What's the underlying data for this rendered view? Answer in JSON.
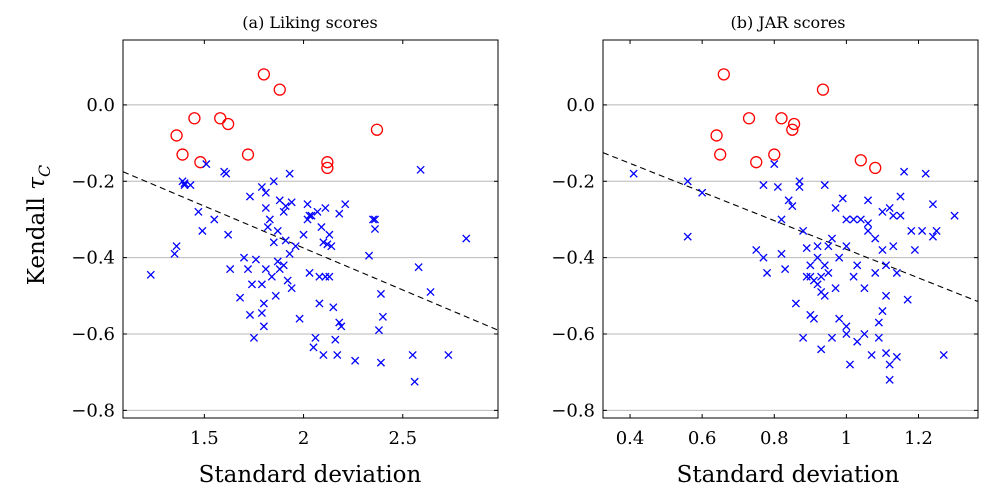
{
  "figure": {
    "ylabel_text": "Kendall ",
    "ylabel_symbol": "τ",
    "ylabel_subscript": "C"
  },
  "chart_data": [
    {
      "type": "scatter",
      "title": "(a) Liking scores",
      "xlabel": "Standard deviation",
      "ylabel": "Kendall τC",
      "xlim": [
        1.09,
        2.98
      ],
      "ylim": [
        -0.82,
        0.17
      ],
      "xticks": [
        1.5,
        2,
        2.5
      ],
      "xtick_labels": [
        "1.5",
        "2",
        "2.5"
      ],
      "yticks": [
        0.0,
        -0.2,
        -0.4,
        -0.6,
        -0.8
      ],
      "ytick_labels": [
        "0.0",
        "−0.2",
        "−0.4",
        "−0.6",
        "−0.8"
      ],
      "grid": "horizontal",
      "trend_line": {
        "x": [
          1.09,
          2.98
        ],
        "y": [
          -0.175,
          -0.59
        ]
      },
      "series": [
        {
          "marker": "circle",
          "color": "#ff0000",
          "points": [
            [
              1.36,
              -0.08
            ],
            [
              1.39,
              -0.13
            ],
            [
              1.45,
              -0.035
            ],
            [
              1.48,
              -0.15
            ],
            [
              1.58,
              -0.035
            ],
            [
              1.62,
              -0.05
            ],
            [
              1.72,
              -0.13
            ],
            [
              1.8,
              0.08
            ],
            [
              1.88,
              0.04
            ],
            [
              2.12,
              -0.15
            ],
            [
              2.12,
              -0.165
            ],
            [
              2.37,
              -0.065
            ]
          ]
        },
        {
          "marker": "cross",
          "color": "#0000ff",
          "points": [
            [
              1.23,
              -0.445
            ],
            [
              1.35,
              -0.39
            ],
            [
              1.36,
              -0.37
            ],
            [
              1.39,
              -0.2
            ],
            [
              1.4,
              -0.205
            ],
            [
              1.4,
              -0.21
            ],
            [
              1.43,
              -0.21
            ],
            [
              1.47,
              -0.28
            ],
            [
              1.49,
              -0.33
            ],
            [
              1.51,
              -0.155
            ],
            [
              1.55,
              -0.3
            ],
            [
              1.6,
              -0.175
            ],
            [
              1.61,
              -0.18
            ],
            [
              1.62,
              -0.34
            ],
            [
              1.63,
              -0.43
            ],
            [
              1.68,
              -0.505
            ],
            [
              1.7,
              -0.4
            ],
            [
              1.72,
              -0.43
            ],
            [
              1.73,
              -0.55
            ],
            [
              1.74,
              -0.47
            ],
            [
              1.73,
              -0.24
            ],
            [
              1.75,
              -0.61
            ],
            [
              1.76,
              -0.405
            ],
            [
              1.79,
              -0.215
            ],
            [
              1.79,
              -0.47
            ],
            [
              1.79,
              -0.545
            ],
            [
              1.8,
              -0.52
            ],
            [
              1.8,
              -0.58
            ],
            [
              1.81,
              -0.23
            ],
            [
              1.81,
              -0.43
            ],
            [
              1.82,
              -0.32
            ],
            [
              1.81,
              -0.27
            ],
            [
              1.83,
              -0.3
            ],
            [
              1.84,
              -0.45
            ],
            [
              1.85,
              -0.2
            ],
            [
              1.85,
              -0.36
            ],
            [
              1.86,
              -0.5
            ],
            [
              1.87,
              -0.33
            ],
            [
              1.87,
              -0.41
            ],
            [
              1.88,
              -0.25
            ],
            [
              1.88,
              -0.43
            ],
            [
              1.9,
              -0.28
            ],
            [
              1.9,
              -0.42
            ],
            [
              1.91,
              -0.265
            ],
            [
              1.91,
              -0.355
            ],
            [
              1.92,
              -0.46
            ],
            [
              1.93,
              -0.18
            ],
            [
              1.93,
              -0.39
            ],
            [
              1.94,
              -0.255
            ],
            [
              1.94,
              -0.48
            ],
            [
              1.96,
              -0.37
            ],
            [
              1.98,
              -0.56
            ],
            [
              2.0,
              -0.34
            ],
            [
              2.02,
              -0.3
            ],
            [
              2.02,
              -0.26
            ],
            [
              2.03,
              -0.44
            ],
            [
              2.03,
              -0.29
            ],
            [
              2.04,
              -0.29
            ],
            [
              2.05,
              -0.635
            ],
            [
              2.06,
              -0.61
            ],
            [
              2.07,
              -0.28
            ],
            [
              2.08,
              -0.45
            ],
            [
              2.08,
              -0.52
            ],
            [
              2.09,
              -0.32
            ],
            [
              2.1,
              -0.36
            ],
            [
              2.1,
              -0.655
            ],
            [
              2.11,
              -0.27
            ],
            [
              2.11,
              -0.45
            ],
            [
              2.12,
              -0.365
            ],
            [
              2.13,
              -0.34
            ],
            [
              2.13,
              -0.45
            ],
            [
              2.14,
              -0.37
            ],
            [
              2.15,
              -0.53
            ],
            [
              2.16,
              -0.615
            ],
            [
              2.17,
              -0.655
            ],
            [
              2.18,
              -0.57
            ],
            [
              2.18,
              -0.285
            ],
            [
              2.19,
              -0.58
            ],
            [
              2.21,
              -0.26
            ],
            [
              2.26,
              -0.67
            ],
            [
              2.33,
              -0.395
            ],
            [
              2.35,
              -0.3
            ],
            [
              2.36,
              -0.325
            ],
            [
              2.36,
              -0.3
            ],
            [
              2.38,
              -0.59
            ],
            [
              2.39,
              -0.675
            ],
            [
              2.39,
              -0.495
            ],
            [
              2.4,
              -0.555
            ],
            [
              2.55,
              -0.655
            ],
            [
              2.56,
              -0.725
            ],
            [
              2.58,
              -0.425
            ],
            [
              2.59,
              -0.17
            ],
            [
              2.64,
              -0.49
            ],
            [
              2.73,
              -0.655
            ],
            [
              2.82,
              -0.35
            ]
          ]
        }
      ]
    },
    {
      "type": "scatter",
      "title": "(b) JAR scores",
      "xlabel": "Standard deviation",
      "ylabel": "",
      "xlim": [
        0.325,
        1.365
      ],
      "ylim": [
        -0.82,
        0.17
      ],
      "xticks": [
        0.4,
        0.6,
        0.8,
        1.0,
        1.2
      ],
      "xtick_labels": [
        "0.4",
        "0.6",
        "0.8",
        "1",
        "1.2"
      ],
      "yticks": [
        0.0,
        -0.2,
        -0.4,
        -0.6,
        -0.8
      ],
      "ytick_labels": [
        "0.0",
        "−0.2",
        "−0.4",
        "−0.6",
        "−0.8"
      ],
      "grid": "horizontal",
      "trend_line": {
        "x": [
          0.325,
          1.365
        ],
        "y": [
          -0.125,
          -0.515
        ]
      },
      "series": [
        {
          "marker": "circle",
          "color": "#ff0000",
          "points": [
            [
              0.64,
              -0.08
            ],
            [
              0.65,
              -0.13
            ],
            [
              0.66,
              0.08
            ],
            [
              0.73,
              -0.035
            ],
            [
              0.75,
              -0.15
            ],
            [
              0.8,
              -0.13
            ],
            [
              0.82,
              -0.035
            ],
            [
              0.85,
              -0.065
            ],
            [
              0.855,
              -0.05
            ],
            [
              0.935,
              0.04
            ],
            [
              1.04,
              -0.145
            ],
            [
              1.08,
              -0.165
            ]
          ]
        },
        {
          "marker": "cross",
          "color": "#0000ff",
          "points": [
            [
              0.41,
              -0.18
            ],
            [
              0.56,
              -0.2
            ],
            [
              0.6,
              -0.23
            ],
            [
              0.56,
              -0.345
            ],
            [
              0.75,
              -0.38
            ],
            [
              0.77,
              -0.4
            ],
            [
              0.77,
              -0.21
            ],
            [
              0.78,
              -0.44
            ],
            [
              0.8,
              -0.155
            ],
            [
              0.81,
              -0.215
            ],
            [
              0.82,
              -0.3
            ],
            [
              0.82,
              -0.39
            ],
            [
              0.83,
              -0.43
            ],
            [
              0.84,
              -0.25
            ],
            [
              0.85,
              -0.265
            ],
            [
              0.86,
              -0.52
            ],
            [
              0.87,
              -0.2
            ],
            [
              0.87,
              -0.215
            ],
            [
              0.88,
              -0.33
            ],
            [
              0.88,
              -0.61
            ],
            [
              0.89,
              -0.375
            ],
            [
              0.89,
              -0.45
            ],
            [
              0.9,
              -0.42
            ],
            [
              0.9,
              -0.45
            ],
            [
              0.9,
              -0.55
            ],
            [
              0.91,
              -0.46
            ],
            [
              0.91,
              -0.56
            ],
            [
              0.92,
              -0.47
            ],
            [
              0.92,
              -0.4
            ],
            [
              0.92,
              -0.37
            ],
            [
              0.93,
              -0.45
            ],
            [
              0.93,
              -0.49
            ],
            [
              0.93,
              -0.64
            ],
            [
              0.94,
              -0.42
            ],
            [
              0.94,
              -0.5
            ],
            [
              0.94,
              -0.21
            ],
            [
              0.95,
              -0.37
            ],
            [
              0.95,
              -0.44
            ],
            [
              0.96,
              -0.35
            ],
            [
              0.96,
              -0.61
            ],
            [
              0.97,
              -0.48
            ],
            [
              0.97,
              -0.27
            ],
            [
              0.98,
              -0.4
            ],
            [
              0.98,
              -0.56
            ],
            [
              0.99,
              -0.245
            ],
            [
              1.0,
              -0.3
            ],
            [
              1.0,
              -0.37
            ],
            [
              1.0,
              -0.58
            ],
            [
              1.0,
              -0.6
            ],
            [
              1.01,
              -0.68
            ],
            [
              1.02,
              -0.45
            ],
            [
              1.02,
              -0.3
            ],
            [
              1.03,
              -0.42
            ],
            [
              1.03,
              -0.62
            ],
            [
              1.04,
              -0.3
            ],
            [
              1.05,
              -0.48
            ],
            [
              1.05,
              -0.6
            ],
            [
              1.06,
              -0.25
            ],
            [
              1.06,
              -0.31
            ],
            [
              1.06,
              -0.33
            ],
            [
              1.07,
              -0.655
            ],
            [
              1.08,
              -0.35
            ],
            [
              1.08,
              -0.44
            ],
            [
              1.09,
              -0.57
            ],
            [
              1.09,
              -0.61
            ],
            [
              1.1,
              -0.38
            ],
            [
              1.1,
              -0.28
            ],
            [
              1.1,
              -0.54
            ],
            [
              1.11,
              -0.42
            ],
            [
              1.11,
              -0.65
            ],
            [
              1.11,
              -0.5
            ],
            [
              1.12,
              -0.68
            ],
            [
              1.12,
              -0.72
            ],
            [
              1.12,
              -0.27
            ],
            [
              1.13,
              -0.37
            ],
            [
              1.13,
              -0.29
            ],
            [
              1.14,
              -0.44
            ],
            [
              1.14,
              -0.66
            ],
            [
              1.15,
              -0.24
            ],
            [
              1.15,
              -0.29
            ],
            [
              1.16,
              -0.175
            ],
            [
              1.17,
              -0.51
            ],
            [
              1.18,
              -0.33
            ],
            [
              1.19,
              -0.38
            ],
            [
              1.21,
              -0.33
            ],
            [
              1.22,
              -0.18
            ],
            [
              1.24,
              -0.26
            ],
            [
              1.24,
              -0.345
            ],
            [
              1.25,
              -0.33
            ],
            [
              1.27,
              -0.655
            ],
            [
              1.3,
              -0.29
            ]
          ]
        }
      ]
    }
  ]
}
